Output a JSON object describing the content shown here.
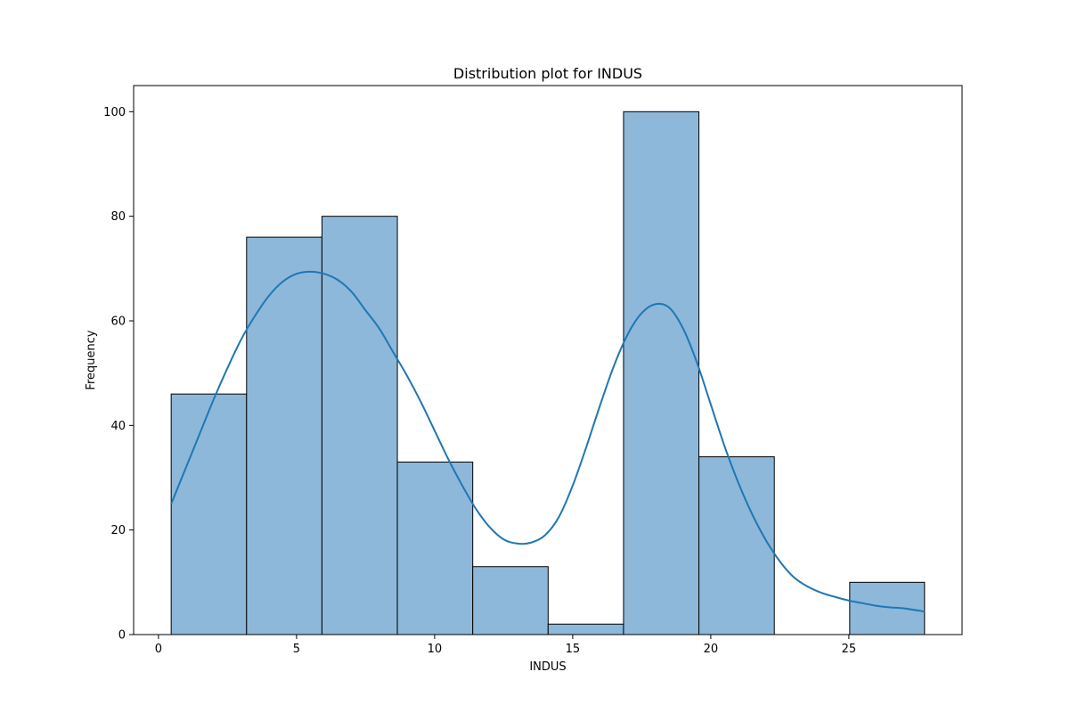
{
  "chart_data": {
    "type": "bar",
    "title": "Distribution plot for INDUS",
    "xlabel": "INDUS",
    "ylabel": "Frequency",
    "xlim": [
      -0.9,
      29.1
    ],
    "ylim": [
      0,
      105
    ],
    "xticks": [
      0,
      5,
      10,
      15,
      20,
      25
    ],
    "yticks": [
      0,
      20,
      40,
      60,
      80,
      100
    ],
    "bins": [
      {
        "start": 0.46,
        "end": 3.19,
        "count": 46
      },
      {
        "start": 3.19,
        "end": 5.92,
        "count": 76
      },
      {
        "start": 5.92,
        "end": 8.65,
        "count": 80
      },
      {
        "start": 8.65,
        "end": 11.38,
        "count": 33
      },
      {
        "start": 11.38,
        "end": 14.11,
        "count": 13
      },
      {
        "start": 14.11,
        "end": 16.84,
        "count": 2
      },
      {
        "start": 16.84,
        "end": 19.57,
        "count": 100
      },
      {
        "start": 19.57,
        "end": 22.3,
        "count": 34
      },
      {
        "start": 22.3,
        "end": 25.03,
        "count": 0
      },
      {
        "start": 25.03,
        "end": 27.74,
        "count": 10
      }
    ],
    "kde": {
      "x": [
        0.46,
        1.0,
        1.5,
        2.0,
        2.5,
        3.0,
        3.5,
        4.0,
        4.5,
        5.0,
        5.5,
        6.0,
        6.5,
        7.0,
        7.5,
        8.0,
        8.5,
        9.0,
        9.5,
        10.0,
        10.5,
        11.0,
        11.5,
        12.0,
        12.5,
        13.0,
        13.5,
        14.0,
        14.5,
        15.0,
        15.5,
        16.0,
        16.5,
        17.0,
        17.5,
        18.0,
        18.5,
        19.0,
        19.5,
        20.0,
        20.5,
        21.0,
        21.5,
        22.0,
        22.5,
        23.0,
        23.5,
        24.0,
        24.5,
        25.0,
        25.5,
        26.0,
        26.5,
        27.0,
        27.74
      ],
      "y": [
        25,
        32,
        38.5,
        45,
        51,
        56.5,
        61,
        64.8,
        67.5,
        69,
        69.4,
        69,
        67.8,
        65.5,
        62,
        58.5,
        54,
        49.5,
        44.5,
        39,
        33.5,
        28.5,
        24,
        20.5,
        18.2,
        17.4,
        17.6,
        19,
        22.5,
        28.5,
        36,
        44,
        51.5,
        57.5,
        61.5,
        63.2,
        62.5,
        58.5,
        52,
        44,
        36,
        29,
        23,
        18,
        14,
        11,
        9.2,
        8,
        7.2,
        6.5,
        6,
        5.5,
        5.2,
        5,
        4.4
      ]
    },
    "bar_color": "#8db8da",
    "line_color": "#1f77b4",
    "grid": false,
    "legend": "none"
  }
}
